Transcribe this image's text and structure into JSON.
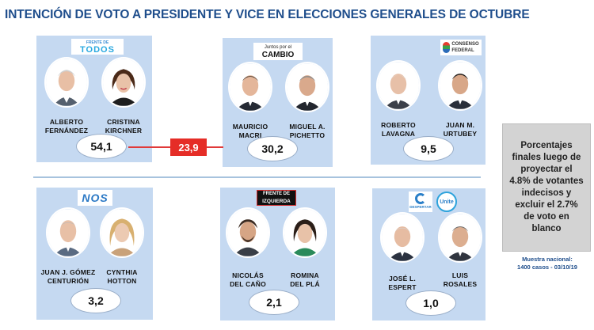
{
  "title": "INTENCIÓN DE VOTO A PRESIDENTE Y VICE EN ELECCIONES GENERALES DE OCTUBRE",
  "colors": {
    "card": "#c5d9f1",
    "title": "#1f4e8c",
    "highlight": "#e52d27",
    "note_box": "#d3d3d3"
  },
  "chart_data": {
    "type": "table",
    "title": "INTENCIÓN DE VOTO A PRESIDENTE Y VICE EN ELECCIONES GENERALES DE OCTUBRE",
    "unit": "%",
    "rows": [
      {
        "party": "FRENTE DE TODOS",
        "president": [
          "ALBERTO",
          "FERNÁNDEZ"
        ],
        "vice": [
          "CRISTINA",
          "KIRCHNER"
        ],
        "value": 54.1,
        "label": "54,1"
      },
      {
        "party": "Juntos por el CAMBIO",
        "president": [
          "MAURICIO",
          "MACRI"
        ],
        "vice": [
          "MIGUEL A.",
          "PICHETTO"
        ],
        "value": 30.2,
        "label": "30,2"
      },
      {
        "party": "CONSENSO FEDERAL",
        "president": [
          "ROBERTO",
          "LAVAGNA"
        ],
        "vice": [
          "JUAN M.",
          "URTUBEY"
        ],
        "value": 9.5,
        "label": "9,5"
      },
      {
        "party": "NOS",
        "president": [
          "JUAN J. GÓMEZ",
          "CENTURIÓN"
        ],
        "vice": [
          "CYNTHIA",
          "HOTTON"
        ],
        "value": 3.2,
        "label": "3,2"
      },
      {
        "party": "FRENTE DE IZQUIERDA",
        "president": [
          "NICOLÁS",
          "DEL CAÑO"
        ],
        "vice": [
          "ROMINA",
          "DEL PLÁ"
        ],
        "value": 2.1,
        "label": "2,1"
      },
      {
        "party": "DESPERTAR / Unite",
        "president": [
          "JOSÉ L.",
          "ESPERT"
        ],
        "vice": [
          "LUIS",
          "ROSALES"
        ],
        "value": 1.0,
        "label": "1,0"
      }
    ],
    "difference": {
      "between": [
        "FRENTE DE TODOS",
        "Juntos por el CAMBIO"
      ],
      "value": 23.9,
      "label": "23,9"
    },
    "note": "Porcentajes finales luego de proyectar el 4.8% de votantes indecisos y excluir el 2.7% de voto en blanco",
    "sample": [
      "Muestra nacional:",
      "1400 casos - 03/10/19"
    ]
  },
  "logos": {
    "todos_top": "FRENTE DE",
    "todos_main": "TODOS",
    "cambio_top": "Juntos por el",
    "cambio_main": "CAMBIO",
    "consenso_top": "CONSENSO",
    "consenso_main": "FEDERAL",
    "nos": "NOS",
    "fit_top": "FRENTE DE",
    "fit_main": "IZQUIERDA",
    "despertar": "DESPERTAR",
    "unite": "Unite"
  }
}
